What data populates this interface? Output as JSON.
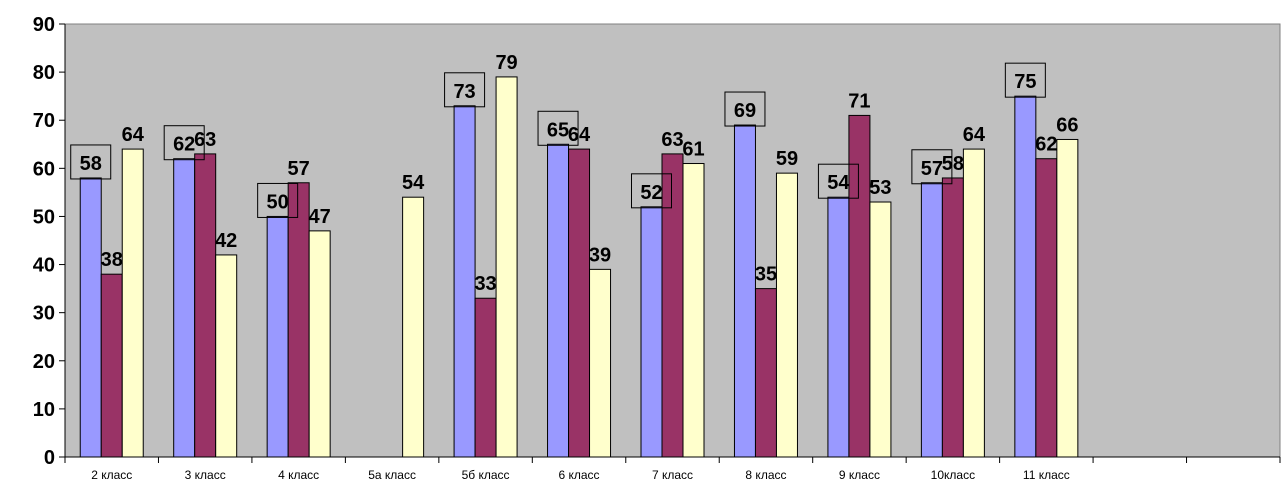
{
  "chart_data": {
    "type": "bar",
    "categories": [
      "2 класс",
      "3 класс",
      "4 класс",
      "5а класс",
      "5б класс",
      "6 класс",
      "7 класс",
      "8 класс",
      "9 класс",
      "10класс",
      "11 класс"
    ],
    "series": [
      {
        "values": [
          58,
          62,
          50,
          null,
          73,
          65,
          52,
          69,
          54,
          57,
          75
        ],
        "color": "#9999ff",
        "boxed_labels": true
      },
      {
        "values": [
          38,
          63,
          57,
          null,
          33,
          64,
          63,
          35,
          71,
          58,
          62
        ],
        "color": "#993366",
        "boxed_labels": false
      },
      {
        "values": [
          64,
          42,
          47,
          54,
          79,
          39,
          61,
          59,
          53,
          64,
          66
        ],
        "color": "#ffffcc",
        "boxed_labels": false
      }
    ],
    "yticks": [
      0,
      10,
      20,
      30,
      40,
      50,
      60,
      70,
      80,
      90
    ],
    "ylim": [
      0,
      90
    ],
    "grid": false,
    "plot_background": "#c0c0c0",
    "empty_slots_after_data": 2
  }
}
